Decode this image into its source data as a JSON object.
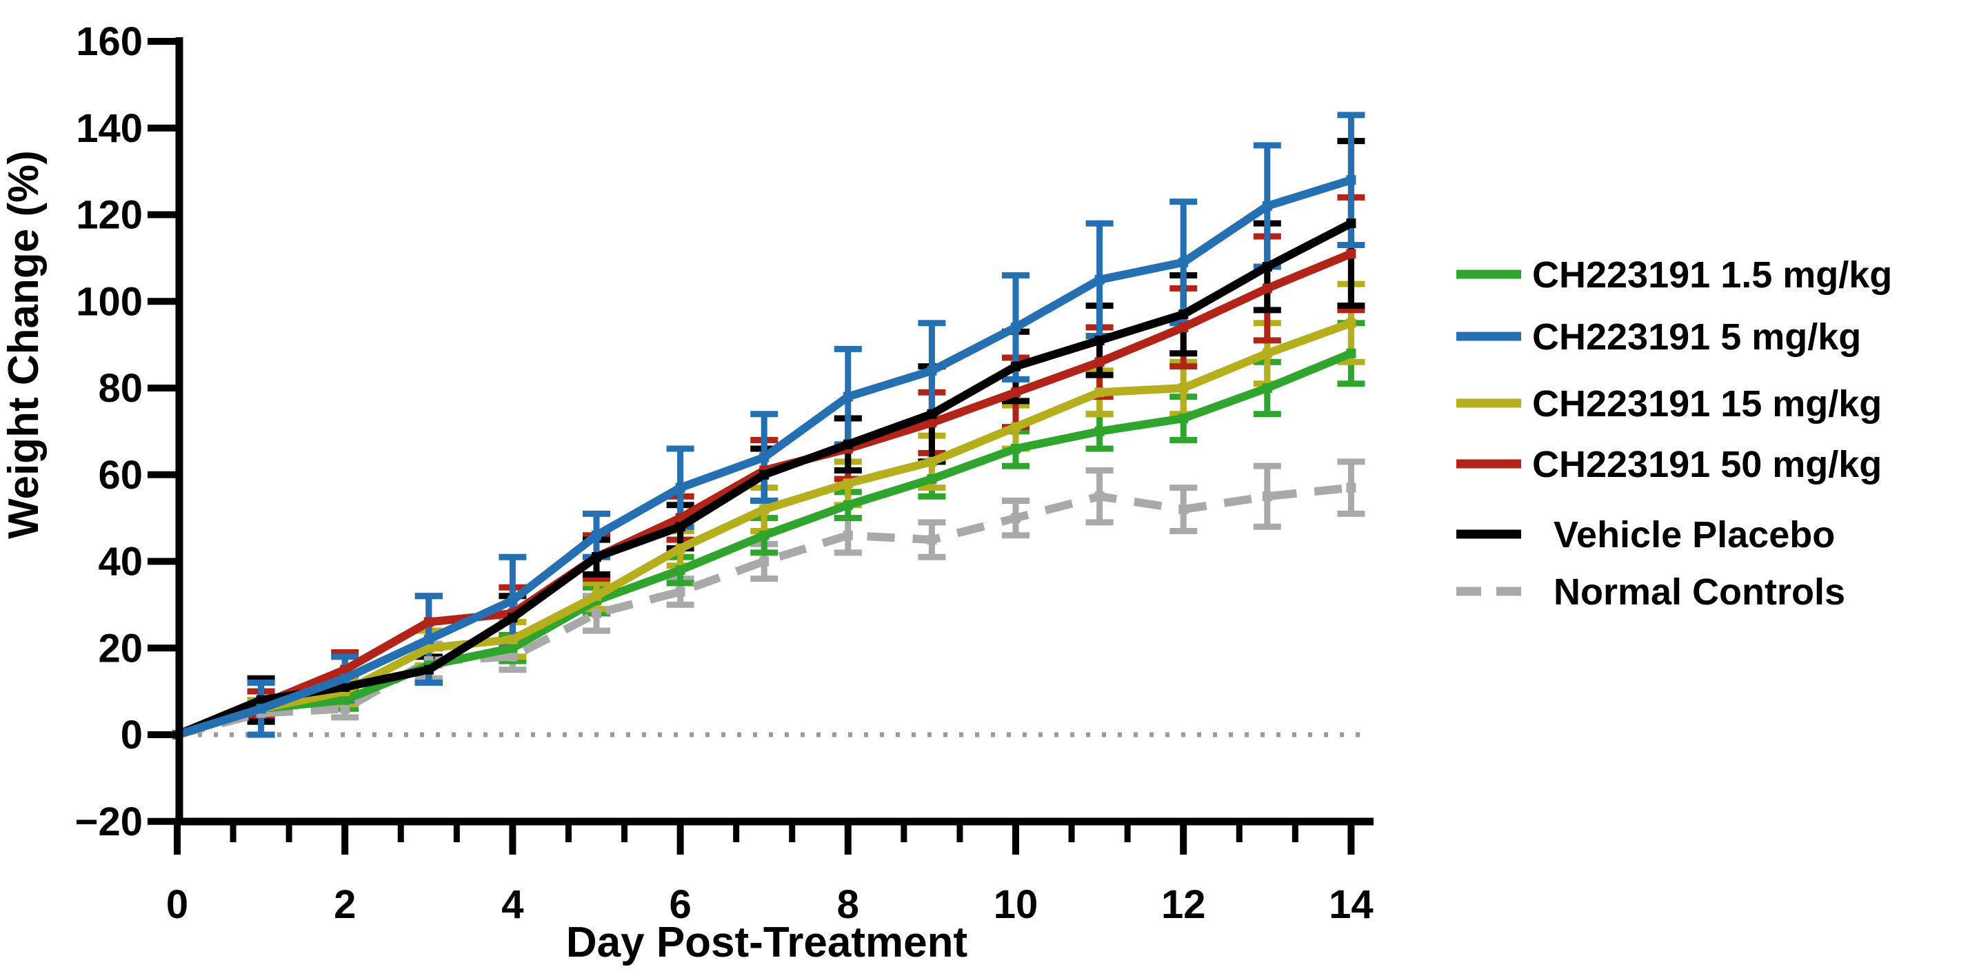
{
  "figure": {
    "background": "#ffffff",
    "axis_color": "#000000",
    "zero_line_color": "#9b9b9b"
  },
  "chart_data": {
    "type": "line",
    "title": "",
    "xlabel": "Day Post-Treatment",
    "ylabel": "Weight Change (%)",
    "x": [
      0,
      1,
      2,
      3,
      4,
      5,
      6,
      7,
      8,
      9,
      10,
      11,
      12,
      13,
      14
    ],
    "xlim": [
      0,
      14
    ],
    "ylim": [
      -20,
      160
    ],
    "x_major_ticks": [
      0,
      2,
      4,
      6,
      8,
      10,
      12,
      14
    ],
    "x_tick_labels": [
      "0",
      "2",
      "4",
      "6",
      "8",
      "10",
      "12",
      "14"
    ],
    "x_minor_ticks_per_major_interval": 2,
    "y_ticks": [
      160,
      140,
      120,
      100,
      80,
      60,
      40,
      20,
      0,
      -20
    ],
    "y_tick_labels": [
      "160",
      "140",
      "120",
      "100",
      "80",
      "60",
      "40",
      "20",
      "0",
      "−20"
    ],
    "grid": false,
    "zero_baseline": {
      "show": true,
      "style": "dotted",
      "color": "#9b9b9b"
    },
    "legend_position": "right",
    "error_bars": "symmetric, with caps, in series color",
    "series": [
      {
        "name": "CH223191 1.5 mg/kg",
        "color": "#2FA52D",
        "line_style": "solid",
        "values": [
          0,
          6,
          8,
          16,
          20,
          31,
          38,
          46,
          53,
          59,
          66,
          70,
          73,
          80,
          88
        ],
        "errors": [
          0,
          2,
          2,
          4,
          3,
          3,
          3,
          4,
          3,
          4,
          4,
          4,
          5,
          6,
          7
        ]
      },
      {
        "name": "CH223191 5 mg/kg",
        "color": "#2470B3",
        "line_style": "solid",
        "values": [
          0,
          6,
          13,
          22,
          31,
          46,
          57,
          64,
          78,
          84,
          94,
          105,
          109,
          122,
          128
        ],
        "errors": [
          0,
          6,
          5,
          10,
          10,
          5,
          9,
          10,
          11,
          11,
          12,
          13,
          14,
          14,
          15
        ]
      },
      {
        "name": "CH223191  15 mg/kg",
        "color": "#B5AF1E",
        "line_style": "solid",
        "values": [
          0,
          6,
          10,
          20,
          22,
          32,
          43,
          52,
          58,
          63,
          71,
          79,
          80,
          88,
          95
        ],
        "errors": [
          0,
          2,
          3,
          4,
          4,
          3,
          4,
          5,
          5,
          6,
          5,
          5,
          6,
          7,
          9
        ]
      },
      {
        "name": "CH223191  50 mg/kg",
        "color": "#B22318",
        "line_style": "solid",
        "values": [
          0,
          7,
          15,
          26,
          28,
          41,
          50,
          61,
          66,
          72,
          79,
          86,
          94,
          103,
          111
        ],
        "errors": [
          0,
          3,
          4,
          6,
          6,
          5,
          5,
          7,
          7,
          7,
          8,
          8,
          9,
          12,
          13
        ]
      },
      {
        "name": "Vehicle Placebo",
        "color": "#000000",
        "line_style": "solid",
        "values": [
          0,
          8,
          11,
          15,
          27,
          41,
          48,
          60,
          67,
          74,
          85,
          91,
          97,
          108,
          118
        ],
        "errors": [
          0,
          5,
          3,
          3,
          5,
          4,
          5,
          6,
          6,
          11,
          8,
          8,
          9,
          10,
          19
        ]
      },
      {
        "name": "Normal Controls",
        "color": "#A9A9A9",
        "line_style": "dashed",
        "values": [
          0,
          5,
          6,
          17,
          18,
          28,
          33,
          40,
          46,
          45,
          50,
          55,
          52,
          55,
          57
        ],
        "errors": [
          0,
          2,
          2,
          4,
          3,
          4,
          3,
          4,
          4,
          4,
          4,
          6,
          5,
          7,
          6
        ]
      }
    ]
  }
}
